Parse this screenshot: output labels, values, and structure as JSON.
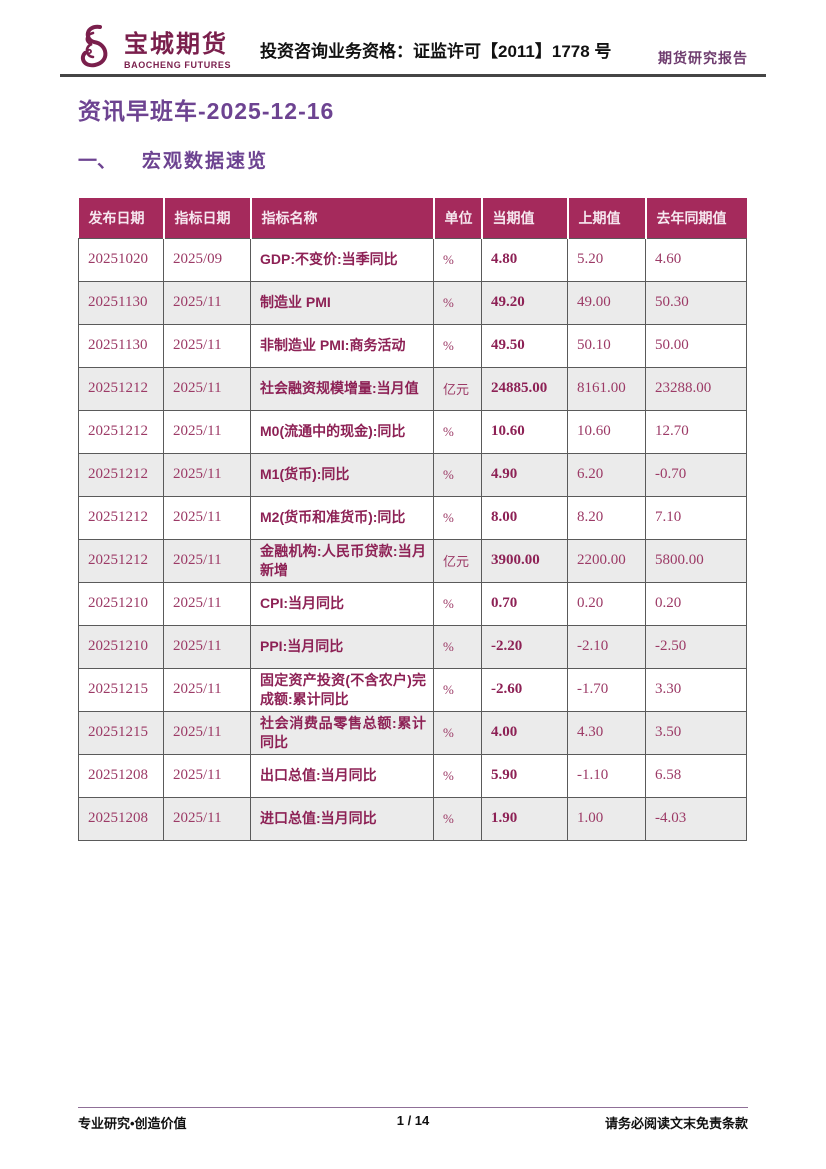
{
  "header": {
    "logo_cn": "宝城期货",
    "logo_en": "BAOCHENG FUTURES",
    "qualification": "投资咨询业务资格：证监许可【2011】1778 号",
    "report_type": "期货研究报告"
  },
  "title": "资讯早班车-2025-12-16",
  "section": {
    "index": "一、",
    "title": "宏观数据速览"
  },
  "table": {
    "headers": [
      "发布日期",
      "指标日期",
      "指标名称",
      "单位",
      "当期值",
      "上期值",
      "去年同期值"
    ],
    "rows": [
      [
        "20251020",
        "2025/09",
        "GDP:不变价:当季同比",
        "%",
        "4.80",
        "5.20",
        "4.60"
      ],
      [
        "20251130",
        "2025/11",
        "制造业 PMI",
        "%",
        "49.20",
        "49.00",
        "50.30"
      ],
      [
        "20251130",
        "2025/11",
        "非制造业 PMI:商务活动",
        "%",
        "49.50",
        "50.10",
        "50.00"
      ],
      [
        "20251212",
        "2025/11",
        "社会融资规模增量:当月值",
        "亿元",
        "24885.00",
        "8161.00",
        "23288.00"
      ],
      [
        "20251212",
        "2025/11",
        "M0(流通中的现金):同比",
        "%",
        "10.60",
        "10.60",
        "12.70"
      ],
      [
        "20251212",
        "2025/11",
        "M1(货币):同比",
        "%",
        "4.90",
        "6.20",
        "-0.70"
      ],
      [
        "20251212",
        "2025/11",
        "M2(货币和准货币):同比",
        "%",
        "8.00",
        "8.20",
        "7.10"
      ],
      [
        "20251212",
        "2025/11",
        "金融机构:人民币贷款:当月新增",
        "亿元",
        "3900.00",
        "2200.00",
        "5800.00"
      ],
      [
        "20251210",
        "2025/11",
        "CPI:当月同比",
        "%",
        "0.70",
        "0.20",
        "0.20"
      ],
      [
        "20251210",
        "2025/11",
        "PPI:当月同比",
        "%",
        "-2.20",
        "-2.10",
        "-2.50"
      ],
      [
        "20251215",
        "2025/11",
        "固定资产投资(不含农户)完成额:累计同比",
        "%",
        "-2.60",
        "-1.70",
        "3.30"
      ],
      [
        "20251215",
        "2025/11",
        "社会消费品零售总额:累计同比",
        "%",
        "4.00",
        "4.30",
        "3.50"
      ],
      [
        "20251208",
        "2025/11",
        "出口总值:当月同比",
        "%",
        "5.90",
        "-1.10",
        "6.58"
      ],
      [
        "20251208",
        "2025/11",
        "进口总值:当月同比",
        "%",
        "1.90",
        "1.00",
        "-4.03"
      ]
    ],
    "column_semantics": [
      "publish-date",
      "indicator-date",
      "indicator-name",
      "unit",
      "current-value",
      "previous-value",
      "year-ago-value"
    ]
  },
  "footer": {
    "left": "专业研究•创造价值",
    "page": "1 / 14",
    "right": "请务必阅读文末免责条款"
  },
  "colors": {
    "brand_maroon": "#7a1f4c",
    "title_purple": "#6d4391",
    "table_header_bg": "#a52a5c",
    "cell_text": "#9c3a66",
    "cell_strong": "#8d2155",
    "stripe": "#ebebeb"
  }
}
